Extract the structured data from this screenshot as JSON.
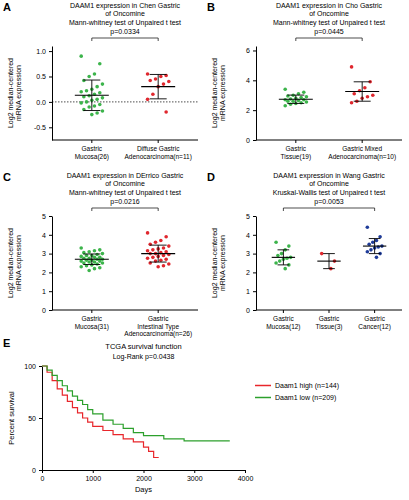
{
  "chart_data": [
    {
      "type": "dot",
      "label": "A",
      "title": "DAAM1 expression in Chen Gastric of Oncomine",
      "subtitle": "Mann-whitney test of Unpaired t test",
      "annotation": "p=0.0334",
      "y_label": "Log2 median-centered mRNA expression",
      "categories": [
        "Gastric Mucosa(26)",
        "Diffuse Gastric Adenocarcinoma(n=11)"
      ],
      "colors": [
        "#3cb44b",
        "#e0272e"
      ],
      "values": [
        [
          0.9,
          0.75,
          0.55,
          0.5,
          0.42,
          0.35,
          0.3,
          0.25,
          0.22,
          0.2,
          0.18,
          0.15,
          0.12,
          0.1,
          0.08,
          0.05,
          0.03,
          0.0,
          -0.02,
          -0.05,
          -0.08,
          -0.1,
          -0.15,
          -0.18,
          -0.22,
          -0.25
        ],
        [
          0.55,
          0.52,
          0.5,
          0.45,
          0.42,
          0.4,
          0.35,
          0.3,
          0.15,
          0.05,
          -0.2
        ]
      ],
      "means": [
        0.13,
        0.3
      ],
      "errors": [
        0.3,
        0.24
      ],
      "reference_line": 0,
      "ylim": [
        -0.75,
        1.1
      ],
      "yticks": [
        -0.5,
        {
          "value": 0,
          "label": "0.0"
        },
        0.5,
        {
          "value": 1,
          "label": "1.0"
        }
      ]
    },
    {
      "type": "dot",
      "label": "B",
      "title": "DAAM1 expression in Cho Gastric of Oncomine",
      "subtitle": "Mann-whitney test of Unpaired t test",
      "annotation": "p=0.0445",
      "y_label": "Log2 median-centered mRNA expression",
      "categories": [
        "Gastric Tissue(19)",
        "Gastric Mixed Adenocarcinoma(n=10)"
      ],
      "colors": [
        "#3cb44b",
        "#e0272e"
      ],
      "values": [
        [
          3.4,
          3.2,
          3.1,
          3.0,
          2.95,
          2.9,
          2.85,
          2.8,
          2.75,
          2.7,
          2.7,
          2.65,
          2.6,
          2.6,
          2.55,
          2.5,
          2.45,
          2.4,
          2.3
        ],
        [
          4.9,
          3.9,
          3.5,
          3.3,
          3.1,
          3.0,
          2.9,
          2.8,
          2.6,
          2.5
        ]
      ],
      "means": [
        2.73,
        3.25
      ],
      "errors": [
        0.28,
        0.65
      ],
      "ylim": [
        0,
        6.3
      ],
      "yticks": [
        0,
        2,
        4,
        6
      ]
    },
    {
      "type": "dot",
      "label": "C",
      "title": "DAAM1 expression in DErrico Gastric of Oncomine",
      "subtitle": "Mann-whitney test of Unpaired t test",
      "annotation": "p=0.0216",
      "y_label": "Log2 median-centered mRNA expression",
      "categories": [
        "Gastric Mucosa(31)",
        "Gastric Intestinal Type Adenocarcinoma(n=26)"
      ],
      "colors": [
        "#3cb44b",
        "#e0272e"
      ],
      "values": [
        [
          3.3,
          3.2,
          3.15,
          3.1,
          3.05,
          3.0,
          2.95,
          2.9,
          2.9,
          2.85,
          2.8,
          2.8,
          2.75,
          2.75,
          2.7,
          2.7,
          2.65,
          2.65,
          2.6,
          2.6,
          2.55,
          2.55,
          2.5,
          2.5,
          2.45,
          2.4,
          2.35,
          2.3,
          2.25,
          2.2,
          2.1
        ],
        [
          4.1,
          3.9,
          3.7,
          3.6,
          3.5,
          3.4,
          3.3,
          3.25,
          3.2,
          3.15,
          3.1,
          3.05,
          3.0,
          3.0,
          2.95,
          2.9,
          2.85,
          2.8,
          2.75,
          2.7,
          2.65,
          2.6,
          2.5,
          2.45,
          2.35,
          2.3
        ]
      ],
      "means": [
        2.7,
        3.0
      ],
      "errors": [
        0.28,
        0.45
      ],
      "ylim": [
        0,
        5
      ],
      "yticks": [
        0,
        1,
        2,
        3,
        4,
        5
      ]
    },
    {
      "type": "dot",
      "label": "D",
      "title": "DAAM1 expression in Wang Gastric of Oncomine",
      "subtitle": "Kruskal-Wallis test of Unpaired t test",
      "annotation": "p=0.0053",
      "y_label": "Log2 median-centered mRNA expression",
      "categories": [
        "Gastric Mucosa(12)",
        "Gastric Tissue(3)",
        "Gastric Cancer(12)"
      ],
      "colors": [
        "#3cb44b",
        "#e0272e",
        "#1f3c99"
      ],
      "values": [
        [
          3.6,
          3.4,
          3.2,
          3.0,
          2.9,
          2.8,
          2.75,
          2.7,
          2.6,
          2.5,
          2.4,
          2.2
        ],
        [
          3.0,
          2.6,
          2.2
        ],
        [
          4.4,
          3.9,
          3.7,
          3.6,
          3.5,
          3.4,
          3.35,
          3.3,
          3.2,
          3.1,
          3.0,
          2.8
        ]
      ],
      "means": [
        2.8,
        2.6,
        3.4
      ],
      "errors": [
        0.4,
        0.4,
        0.4
      ],
      "ylim": [
        0,
        5
      ],
      "yticks": [
        0,
        1,
        2,
        3,
        4,
        5
      ]
    },
    {
      "type": "line",
      "label": "E",
      "title": "TCGA survival function",
      "subtitle": "Log-Rank p=0.0438",
      "x_label": "Days",
      "y_label": "Percent survival",
      "xlim": [
        0,
        4000
      ],
      "ylim": [
        0,
        100
      ],
      "xticks": [
        0,
        1000,
        2000,
        3000,
        4000
      ],
      "yticks": [
        0,
        50,
        100
      ],
      "legend": "right",
      "line_style": "step",
      "series": [
        {
          "name": "Daam1 high (n=144)",
          "color": "#e8262b",
          "x": [
            0,
            100,
            200,
            300,
            400,
            500,
            600,
            700,
            800,
            900,
            1000,
            1200,
            1400,
            1600,
            1800,
            2000,
            2100,
            2200,
            2300
          ],
          "values": [
            100,
            94,
            86,
            78,
            72,
            66,
            60,
            55,
            50,
            46,
            42,
            38,
            34,
            30,
            27,
            22,
            18,
            12,
            12
          ]
        },
        {
          "name": "Daam1 low (n=209)",
          "color": "#2ca02c",
          "x": [
            0,
            100,
            200,
            300,
            400,
            500,
            600,
            700,
            800,
            900,
            1000,
            1200,
            1400,
            1600,
            1800,
            2000,
            2400,
            2800,
            3200,
            3700
          ],
          "values": [
            100,
            96,
            91,
            86,
            81,
            76,
            71,
            67,
            63,
            58,
            54,
            48,
            44,
            40,
            36,
            33,
            30,
            28,
            28,
            28
          ]
        }
      ]
    }
  ]
}
